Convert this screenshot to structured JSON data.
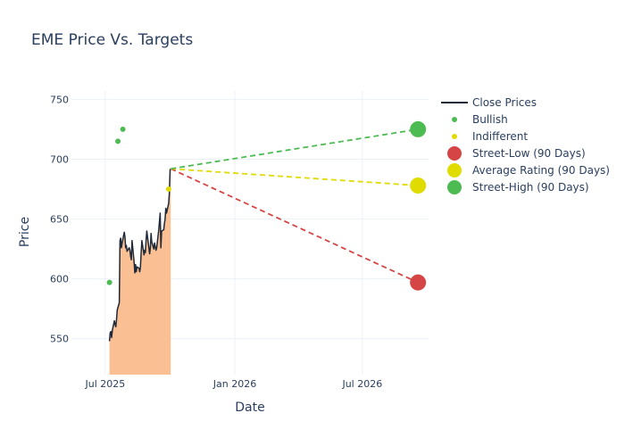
{
  "chart_data": {
    "type": "line",
    "title": "EME Price Vs. Targets",
    "xlabel": "Date",
    "ylabel": "Price",
    "xlim": [
      "2025-05-14",
      "2026-10-03"
    ],
    "ylim": [
      520,
      757
    ],
    "x_ticks": [
      {
        "date": "2025-07-01",
        "label": "Jul 2025"
      },
      {
        "date": "2026-01-01",
        "label": "Jan 2026"
      },
      {
        "date": "2026-07-01",
        "label": "Jul 2026"
      }
    ],
    "y_ticks": [
      550,
      600,
      650,
      700,
      750
    ],
    "grid": true,
    "legend_position": "top-right",
    "close_prices": {
      "name": "Close Prices",
      "color": "#1f2937",
      "fill_color": "#fbbf94",
      "points": [
        [
          "2025-07-07",
          548
        ],
        [
          "2025-07-08",
          555
        ],
        [
          "2025-07-09",
          556
        ],
        [
          "2025-07-10",
          551
        ],
        [
          "2025-07-11",
          557
        ],
        [
          "2025-07-14",
          565
        ],
        [
          "2025-07-15",
          562
        ],
        [
          "2025-07-16",
          560
        ],
        [
          "2025-07-17",
          566
        ],
        [
          "2025-07-18",
          574
        ],
        [
          "2025-07-21",
          580
        ],
        [
          "2025-07-22",
          632
        ],
        [
          "2025-07-23",
          634
        ],
        [
          "2025-07-24",
          626
        ],
        [
          "2025-07-25",
          630
        ],
        [
          "2025-07-28",
          639
        ],
        [
          "2025-07-29",
          635
        ],
        [
          "2025-07-30",
          626
        ],
        [
          "2025-07-31",
          628
        ],
        [
          "2025-08-01",
          623
        ],
        [
          "2025-08-04",
          626
        ],
        [
          "2025-08-05",
          624
        ],
        [
          "2025-08-06",
          619
        ],
        [
          "2025-08-07",
          616
        ],
        [
          "2025-08-08",
          632
        ],
        [
          "2025-08-11",
          614
        ],
        [
          "2025-08-12",
          605
        ],
        [
          "2025-08-13",
          612
        ],
        [
          "2025-08-14",
          606
        ],
        [
          "2025-08-15",
          610
        ],
        [
          "2025-08-18",
          609
        ],
        [
          "2025-08-19",
          606
        ],
        [
          "2025-08-20",
          610
        ],
        [
          "2025-08-21",
          622
        ],
        [
          "2025-08-22",
          632
        ],
        [
          "2025-08-25",
          620
        ],
        [
          "2025-08-26",
          624
        ],
        [
          "2025-08-27",
          622
        ],
        [
          "2025-08-28",
          632
        ],
        [
          "2025-08-29",
          640
        ],
        [
          "2025-09-02",
          621
        ],
        [
          "2025-09-03",
          626
        ],
        [
          "2025-09-04",
          638
        ],
        [
          "2025-09-05",
          631
        ],
        [
          "2025-09-08",
          625
        ],
        [
          "2025-09-09",
          630
        ],
        [
          "2025-09-10",
          627
        ],
        [
          "2025-09-11",
          624
        ],
        [
          "2025-09-12",
          626
        ],
        [
          "2025-09-15",
          641
        ],
        [
          "2025-09-16",
          648
        ],
        [
          "2025-09-17",
          655
        ],
        [
          "2025-09-18",
          626
        ],
        [
          "2025-09-19",
          640
        ],
        [
          "2025-09-22",
          641
        ],
        [
          "2025-09-23",
          646
        ],
        [
          "2025-09-24",
          650
        ],
        [
          "2025-09-25",
          659
        ],
        [
          "2025-09-26",
          655
        ],
        [
          "2025-09-29",
          663
        ],
        [
          "2025-09-30",
          672
        ],
        [
          "2025-10-01",
          691
        ],
        [
          "2025-10-02",
          692
        ]
      ]
    },
    "bullish": {
      "name": "Bullish",
      "color": "#4cbb52",
      "points": [
        [
          "2025-07-07",
          597
        ],
        [
          "2025-07-19",
          715
        ],
        [
          "2025-07-26",
          725
        ]
      ]
    },
    "indifferent": {
      "name": "Indifferent",
      "color": "#e0dc00",
      "points": [
        [
          "2025-09-29",
          675
        ]
      ]
    },
    "targets": {
      "start": [
        "2025-10-02",
        692
      ],
      "end_date": "2026-09-18",
      "series": [
        {
          "name": "Street-Low (90 Days)",
          "value": 597,
          "color": "#d64545"
        },
        {
          "name": "Average Rating (90 Days)",
          "value": 678,
          "color": "#e0dc00"
        },
        {
          "name": "Street-High (90 Days)",
          "value": 725,
          "color": "#4cbb52"
        }
      ]
    },
    "legend": [
      {
        "label": "Close Prices",
        "kind": "line",
        "color": "#1f2937"
      },
      {
        "label": "Bullish",
        "kind": "small-dot",
        "color": "#4cbb52"
      },
      {
        "label": "Indifferent",
        "kind": "small-dot",
        "color": "#e0dc00"
      },
      {
        "label": "Street-Low (90 Days)",
        "kind": "big-dot",
        "color": "#d64545"
      },
      {
        "label": "Average Rating (90 Days)",
        "kind": "big-dot",
        "color": "#e0dc00"
      },
      {
        "label": "Street-High (90 Days)",
        "kind": "big-dot",
        "color": "#4cbb52"
      }
    ]
  }
}
